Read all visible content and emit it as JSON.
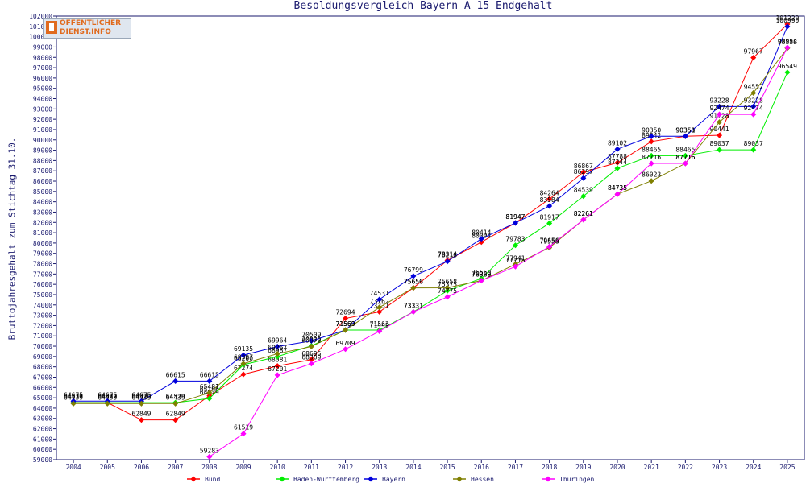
{
  "chart_data": {
    "type": "line",
    "title": "Besoldungsvergleich Bayern A 15 Endgehalt",
    "ylabel": "Bruttojahresgehalt zum Stichtag 31.10.",
    "xlabel": "",
    "ylim": [
      59000,
      102000
    ],
    "y_tick_step": 1000,
    "grid": false,
    "legend_placement": "bottom",
    "categories": [
      "2004",
      "2005",
      "2006",
      "2007",
      "2008",
      "2009",
      "2010",
      "2011",
      "2012",
      "2013",
      "2014",
      "2015",
      "2016",
      "2017",
      "2018",
      "2019",
      "2020",
      "2021",
      "2022",
      "2023",
      "2024",
      "2025"
    ],
    "series": [
      {
        "name": "Bund",
        "color": "#ff0000",
        "values": [
          64537,
          64537,
          62849,
          62849,
          65196,
          67274,
          68081,
          68695,
          72694,
          73331,
          75656,
          78314,
          80094,
          81947,
          84264,
          86867,
          87788,
          89842,
          90350,
          90441,
          97967,
          101220
        ]
      },
      {
        "name": "Baden-Württemberg",
        "color": "#00ee00",
        "values": [
          64529,
          64529,
          64529,
          64529,
          64929,
          68200,
          68987,
          70039,
          71563,
          71563,
          73331,
          75375,
          76560,
          79783,
          81917,
          84539,
          87244,
          88465,
          88465,
          89037,
          89037,
          96549
        ]
      },
      {
        "name": "Bayern",
        "color": "#0000dd",
        "values": [
          64675,
          64675,
          64675,
          66615,
          66615,
          69135,
          69964,
          70509,
          71569,
          74531,
          76799,
          78218,
          80414,
          81947,
          83584,
          86297,
          89102,
          90350,
          90351,
          93228,
          93228,
          100990
        ]
      },
      {
        "name": "Hessen",
        "color": "#7f7f00",
        "values": [
          64439,
          64439,
          64439,
          64439,
          65481,
          68307,
          69267,
          69972,
          71569,
          73762,
          75656,
          75658,
          76360,
          77941,
          79558,
          82261,
          84735,
          86023,
          87716,
          91728,
          94552,
          98888
        ]
      },
      {
        "name": "Thüringen",
        "color": "#ff00ff",
        "values": [
          null,
          null,
          null,
          null,
          59283,
          61519,
          67201,
          68309,
          69709,
          71449,
          73331,
          74775,
          76360,
          77715,
          79656,
          82261,
          84735,
          87716,
          87716,
          92474,
          92474,
          98954
        ]
      }
    ]
  },
  "logo": {
    "line1": "OFFENTLICHER",
    "line2": "DIENST.INFO"
  }
}
